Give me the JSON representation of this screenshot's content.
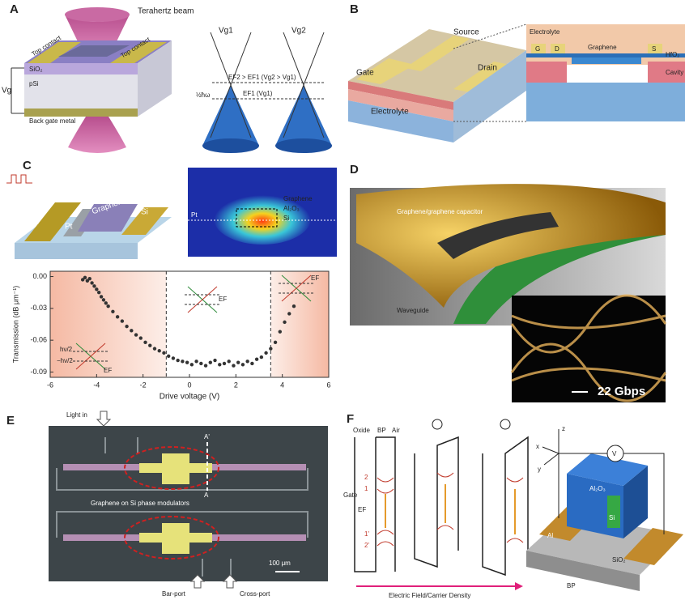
{
  "panels": {
    "A": {
      "label": "A",
      "beam": "Terahertz beam",
      "top_contact_left": "Top contact",
      "top_contact_right": "Top contact",
      "gate_voltage": "Vg",
      "oxide": "SiO₂",
      "substrate": "pSi",
      "back_gate": "Back gate metal",
      "cone1": "Vg1",
      "cone2": "Vg2",
      "fermi2": "EF2 > EF1 (Vg2 > Vg1)",
      "fermi1": "EF1 (Vg1)",
      "photon": "½ħω"
    },
    "B": {
      "label": "B",
      "source": "Source",
      "drain": "Drain",
      "gate": "Gate",
      "electrolyte_left": "Electrolyte",
      "electrolyte_right": "Electrolyte",
      "g": "G",
      "d": "D",
      "graphene": "Graphene",
      "s": "S",
      "oxide": "HfO₂",
      "cavity": "Cavity"
    },
    "C": {
      "label": "C",
      "au": "Au",
      "pt": "Pt",
      "graphene": "Graphene",
      "si": "Si",
      "mode_graphene": "Graphene",
      "mode_oxide": "Al₂O₃",
      "mode_si": "Si",
      "mode_pt": "Pt",
      "inset_top": "hν/2",
      "inset_bottom": "−hν/2",
      "ef_left": "EF",
      "ef_middle": "EF",
      "ef_right": "EF",
      "plot": {
        "type": "scatter",
        "y_label": "Transmission (dB μm⁻¹)",
        "x_label": "Drive voltage (V)",
        "color": "#333333",
        "x": [
          -4.6,
          -4.5,
          -4.4,
          -4.3,
          -4.2,
          -4.1,
          -4.0,
          -3.9,
          -3.8,
          -3.7,
          -3.6,
          -3.5,
          -3.3,
          -3.1,
          -2.9,
          -2.7,
          -2.5,
          -2.3,
          -2.1,
          -1.9,
          -1.7,
          -1.5,
          -1.3,
          -1.1,
          -0.9,
          -0.7,
          -0.5,
          -0.3,
          -0.1,
          0.1,
          0.3,
          0.5,
          0.7,
          0.9,
          1.1,
          1.3,
          1.5,
          1.7,
          1.9,
          2.1,
          2.3,
          2.5,
          2.7,
          2.9,
          3.1,
          3.3,
          3.5,
          3.7,
          3.9,
          4.1,
          4.3,
          4.5
        ],
        "values": [
          -0.003,
          -0.001,
          -0.004,
          -0.002,
          -0.006,
          -0.009,
          -0.012,
          -0.015,
          -0.019,
          -0.022,
          -0.025,
          -0.028,
          -0.033,
          -0.038,
          -0.042,
          -0.047,
          -0.051,
          -0.055,
          -0.058,
          -0.062,
          -0.065,
          -0.068,
          -0.07,
          -0.072,
          -0.075,
          -0.077,
          -0.079,
          -0.08,
          -0.081,
          -0.083,
          -0.08,
          -0.082,
          -0.084,
          -0.081,
          -0.079,
          -0.083,
          -0.082,
          -0.08,
          -0.084,
          -0.081,
          -0.083,
          -0.08,
          -0.082,
          -0.078,
          -0.076,
          -0.072,
          -0.068,
          -0.062,
          -0.052,
          -0.043,
          -0.035,
          -0.028
        ],
        "xlim": [
          -6,
          6
        ],
        "ylim": [
          -0.095,
          0.005
        ],
        "xticks": [
          -6,
          -4,
          -2,
          0,
          2,
          4,
          6
        ],
        "yticks": [
          {
            "value": 0,
            "label": "0.00"
          },
          -0.03,
          -0.06,
          -0.09
        ],
        "vlines": [
          -1,
          3.5
        ]
      }
    },
    "D": {
      "label": "D",
      "capacitor": "Graphene/graphene capacitor",
      "waveguide": "Waveguide",
      "rate": "22 Gbps"
    },
    "E": {
      "label": "E",
      "input": "Light in",
      "section_top": "A'",
      "section_bottom": "A",
      "modulators": "Graphene on Si phase modulators",
      "scale": "100 μm",
      "bar_port": "Bar-port",
      "cross_port": "Cross-port"
    },
    "F": {
      "label": "F",
      "oxide": "Oxide",
      "bp": "BP",
      "air": "Air",
      "gate": "Gate",
      "ef": "EF",
      "level2": "2",
      "level1": "1",
      "level1p": "1'",
      "level2p": "2'",
      "voltmeter": "V",
      "z": "z",
      "x": "x",
      "y": "y",
      "al2o3": "Al₂O₃",
      "si": "Si",
      "al": "Al",
      "sio2": "SiO₂",
      "bp_label": "BP",
      "arrow": "Electric Field/Carrier Density"
    }
  }
}
